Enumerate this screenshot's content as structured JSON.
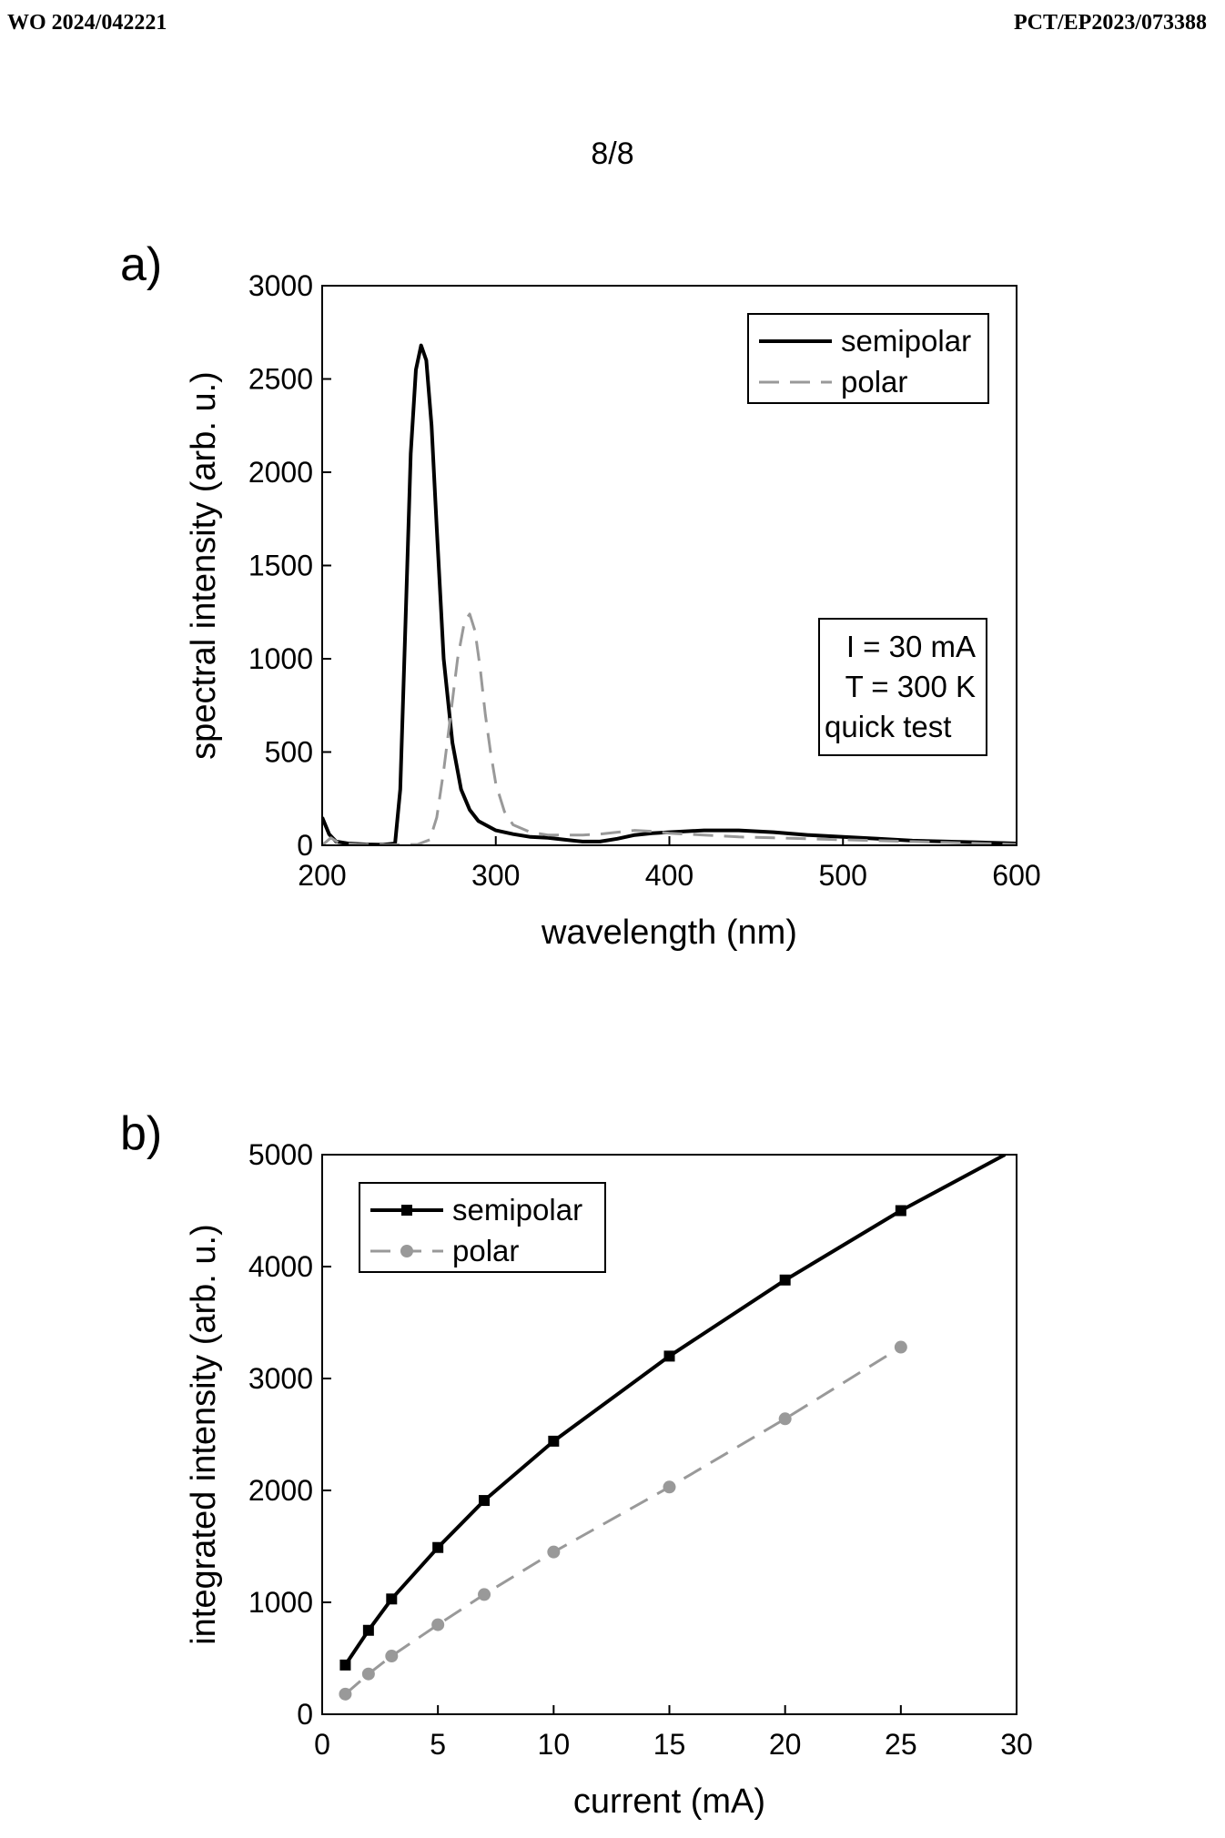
{
  "header": {
    "publication_number": "WO 2024/042221",
    "application_number": "PCT/EP2023/073388",
    "sheet": "8/8"
  },
  "chart_data": [
    {
      "panel": "a)",
      "type": "line",
      "xlabel": "wavelength (nm)",
      "ylabel": "spectral intensity (arb. u.)",
      "xlim": [
        200,
        600
      ],
      "ylim": [
        0,
        3000
      ],
      "xticks": [
        200,
        300,
        400,
        500,
        600
      ],
      "yticks": [
        0,
        500,
        1000,
        1500,
        2000,
        2500,
        3000
      ],
      "legend": "top-right",
      "annotation": [
        "I = 30 mA",
        "T = 300 K",
        "quick test"
      ],
      "series": [
        {
          "name": "semipolar",
          "color": "#000000",
          "style": "solid",
          "x": [
            200,
            204,
            208,
            215,
            225,
            235,
            242,
            245,
            248,
            251,
            254,
            257,
            260,
            263,
            266,
            270,
            275,
            280,
            285,
            290,
            300,
            310,
            320,
            330,
            340,
            350,
            360,
            370,
            380,
            390,
            400,
            420,
            440,
            460,
            480,
            500,
            520,
            540,
            560,
            580,
            600
          ],
          "y": [
            150,
            60,
            20,
            10,
            5,
            3,
            10,
            300,
            1200,
            2100,
            2550,
            2680,
            2600,
            2250,
            1700,
            1000,
            550,
            300,
            190,
            130,
            80,
            60,
            45,
            40,
            30,
            20,
            20,
            35,
            55,
            65,
            70,
            80,
            80,
            70,
            55,
            45,
            35,
            25,
            20,
            15,
            10
          ]
        },
        {
          "name": "polar",
          "color": "#999999",
          "style": "dashed",
          "x": [
            200,
            205,
            210,
            220,
            240,
            255,
            262,
            266,
            270,
            274,
            278,
            282,
            285,
            288,
            291,
            294,
            297,
            300,
            305,
            310,
            320,
            330,
            340,
            350,
            360,
            370,
            380,
            390,
            400,
            420,
            440,
            460,
            480,
            500,
            520,
            540,
            560,
            580,
            600
          ],
          "y": [
            0,
            40,
            10,
            5,
            2,
            5,
            30,
            150,
            400,
            700,
            1000,
            1200,
            1240,
            1150,
            950,
            700,
            500,
            330,
            180,
            110,
            70,
            55,
            55,
            55,
            60,
            70,
            80,
            75,
            65,
            55,
            45,
            40,
            35,
            30,
            25,
            20,
            15,
            10,
            5
          ]
        }
      ]
    },
    {
      "panel": "b)",
      "type": "line",
      "xlabel": "current (mA)",
      "ylabel": "integrated intensity (arb. u.)",
      "xlim": [
        0,
        30
      ],
      "ylim": [
        0,
        5000
      ],
      "xticks": [
        0,
        5,
        10,
        15,
        20,
        25,
        30
      ],
      "yticks": [
        0,
        1000,
        2000,
        3000,
        4000,
        5000
      ],
      "legend": "top-left",
      "series": [
        {
          "name": "semipolar",
          "color": "#000000",
          "style": "solid",
          "marker": "square",
          "x": [
            1,
            2,
            3,
            5,
            7,
            10,
            15,
            20,
            25
          ],
          "y": [
            440,
            750,
            1030,
            1490,
            1910,
            2440,
            3200,
            3880,
            4500
          ],
          "fit_x": [
            25,
            29.5
          ],
          "fit_y": [
            4500,
            5000
          ]
        },
        {
          "name": "polar",
          "color": "#999999",
          "style": "dashed",
          "marker": "circle",
          "x": [
            1,
            2,
            3,
            5,
            7,
            10,
            15,
            20,
            25
          ],
          "y": [
            180,
            360,
            520,
            800,
            1070,
            1450,
            2030,
            2640,
            3280
          ]
        }
      ]
    }
  ]
}
